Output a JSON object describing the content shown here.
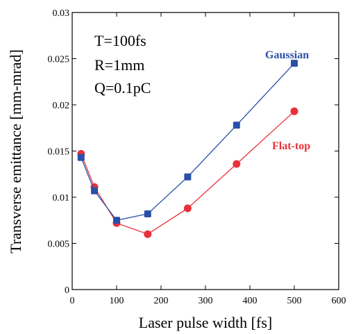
{
  "chart_data": {
    "type": "line",
    "title": "",
    "xlabel": "Laser pulse width [fs]",
    "ylabel": "Transverse emittance [mm-mrad]",
    "xlim": [
      0,
      600
    ],
    "ylim": [
      0,
      0.03
    ],
    "x_ticks": [
      "0",
      "100",
      "200",
      "300",
      "400",
      "500",
      "600"
    ],
    "y_ticks": [
      "0",
      "0.005",
      "0.01",
      "0.015",
      "0.02",
      "0.025",
      "0.03"
    ],
    "grid": false,
    "annotations": [
      "T=100fs",
      "R=1mm",
      "Q=0.1pC"
    ],
    "series": [
      {
        "name": "Gaussian",
        "color": "#2a4fa8",
        "x": [
          20,
          50,
          100,
          170,
          260,
          370,
          500
        ],
        "y": [
          0.0143,
          0.0107,
          0.0075,
          0.0082,
          0.0122,
          0.0178,
          0.0245
        ]
      },
      {
        "name": "Flat-top",
        "color": "#e8303a",
        "x": [
          20,
          50,
          100,
          170,
          260,
          370,
          500
        ],
        "y": [
          0.0147,
          0.0111,
          0.0072,
          0.006,
          0.0088,
          0.0136,
          0.0193
        ]
      }
    ]
  }
}
